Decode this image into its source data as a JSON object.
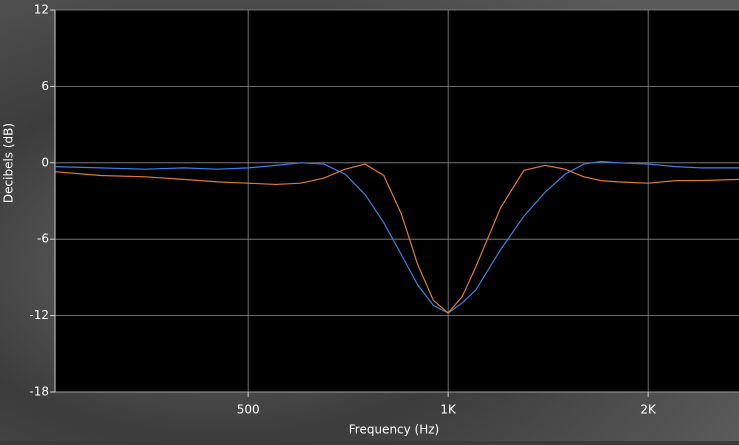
{
  "chart_data": {
    "type": "line",
    "x_label": "Frequency (Hz)",
    "y_label": "Decibels (dB)",
    "x": [
      256,
      300,
      350,
      400,
      450,
      500,
      550,
      600,
      650,
      700,
      750,
      800,
      850,
      900,
      950,
      1000,
      1050,
      1100,
      1200,
      1300,
      1400,
      1500,
      1600,
      1700,
      1800,
      2000,
      2200,
      2400,
      2740
    ],
    "series": [
      {
        "color": "#3b7fe4",
        "values": [
          -0.3,
          -0.4,
          -0.5,
          -0.4,
          -0.5,
          -0.4,
          -0.2,
          0,
          -0.1,
          -0.9,
          -2.5,
          -4.7,
          -7.2,
          -9.6,
          -11.2,
          -11.8,
          -11.0,
          -10.0,
          -6.8,
          -4.2,
          -2.3,
          -0.9,
          -0.1,
          0.1,
          0,
          -0.1,
          -0.3,
          -0.4,
          -0.4
        ]
      },
      {
        "color": "#e07b2a",
        "values": [
          -0.7,
          -1.0,
          -1.1,
          -1.3,
          -1.5,
          -1.6,
          -1.7,
          -1.6,
          -1.2,
          -0.5,
          -0.1,
          -1.0,
          -4.0,
          -8.0,
          -10.8,
          -11.8,
          -10.5,
          -8.2,
          -3.5,
          -0.6,
          -0.2,
          -0.5,
          -1.1,
          -1.4,
          -1.5,
          -1.6,
          -1.4,
          -1.4,
          -1.3
        ]
      }
    ],
    "x_log": true,
    "xlim": [
      256,
      2740
    ],
    "xticks": [
      500,
      {
        "value": 1000,
        "label": "1K"
      },
      {
        "value": 2000,
        "label": "2K"
      }
    ],
    "ylim": [
      -18,
      12
    ],
    "yticks": [
      12,
      6,
      0,
      -6,
      -12,
      -18
    ],
    "grid": true
  }
}
